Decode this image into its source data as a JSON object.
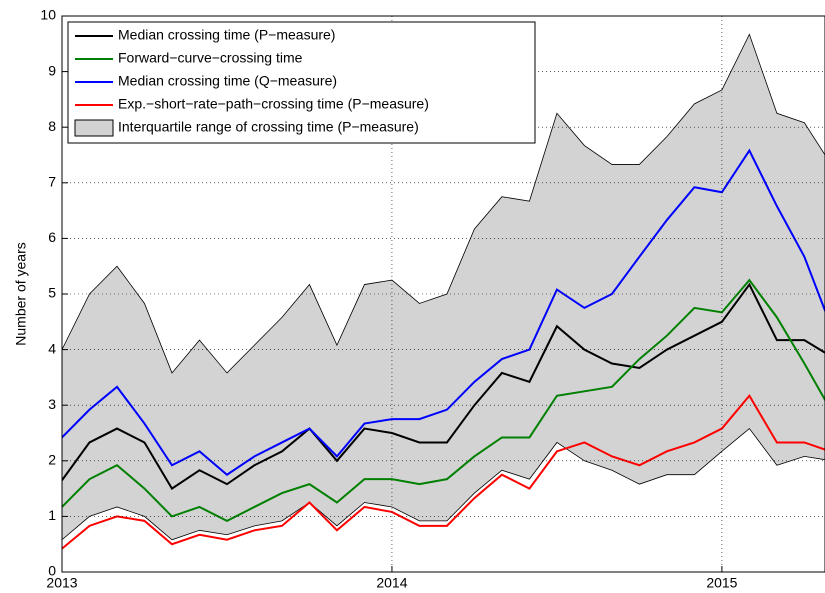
{
  "chart_data": {
    "type": "line",
    "ylabel": "Number of years",
    "x": [
      2013,
      2013.0833,
      2013.1667,
      2013.25,
      2013.3333,
      2013.4167,
      2013.5,
      2013.5833,
      2013.6667,
      2013.75,
      2013.8333,
      2013.9167,
      2014,
      2014.0833,
      2014.1667,
      2014.25,
      2014.3333,
      2014.4167,
      2014.5,
      2014.5833,
      2014.6667,
      2014.75,
      2014.8333,
      2014.9167,
      2015,
      2015.0833,
      2015.1667,
      2015.25,
      2015.3333
    ],
    "series": [
      {
        "name": "Median crossing time (P−measure)",
        "color": "#000000",
        "values": [
          1.65,
          2.33,
          2.58,
          2.33,
          1.5,
          1.83,
          1.58,
          1.92,
          2.17,
          2.58,
          2.0,
          2.58,
          2.5,
          2.33,
          2.33,
          3.0,
          3.58,
          3.42,
          4.42,
          4.0,
          3.75,
          3.67,
          4.0,
          4.25,
          4.5,
          5.17,
          4.17,
          4.17,
          3.87
        ]
      },
      {
        "name": "Forward−curve−crossing time",
        "color": "#008000",
        "values": [
          1.17,
          1.67,
          1.92,
          1.5,
          1.0,
          1.17,
          0.92,
          1.17,
          1.42,
          1.58,
          1.25,
          1.67,
          1.67,
          1.58,
          1.67,
          2.08,
          2.42,
          2.42,
          3.17,
          3.25,
          3.33,
          3.83,
          4.25,
          4.75,
          4.67,
          5.25,
          4.58,
          3.75,
          2.88
        ]
      },
      {
        "name": "Median crossing time (Q−measure)",
        "color": "#0000ff",
        "values": [
          2.42,
          2.92,
          3.33,
          2.67,
          1.92,
          2.17,
          1.75,
          2.08,
          2.33,
          2.58,
          2.08,
          2.67,
          2.75,
          2.75,
          2.92,
          3.42,
          3.83,
          4.0,
          5.08,
          4.75,
          5.0,
          5.67,
          6.33,
          6.92,
          6.83,
          7.58,
          6.58,
          5.67,
          4.38
        ]
      },
      {
        "name": "Exp.−short−rate−path−crossing time (P−measure)",
        "color": "#ff0000",
        "values": [
          0.42,
          0.83,
          1.0,
          0.92,
          0.5,
          0.67,
          0.58,
          0.75,
          0.83,
          1.25,
          0.75,
          1.17,
          1.08,
          0.83,
          0.83,
          1.33,
          1.75,
          1.5,
          2.17,
          2.33,
          2.08,
          1.92,
          2.17,
          2.33,
          2.58,
          3.17,
          2.33,
          2.33,
          2.16
        ]
      }
    ],
    "band": {
      "name": "Interquartile range of crossing time (P−measure)",
      "color": "#d3d3d3",
      "upper": [
        4.0,
        5.0,
        5.5,
        4.83,
        3.58,
        4.17,
        3.58,
        4.08,
        4.58,
        5.17,
        4.08,
        5.17,
        5.25,
        4.83,
        5.0,
        6.17,
        6.75,
        6.67,
        8.25,
        7.67,
        7.33,
        7.33,
        7.83,
        8.42,
        8.67,
        9.67,
        8.25,
        8.08,
        7.31
      ],
      "lower": [
        0.58,
        1.0,
        1.17,
        1.0,
        0.58,
        0.75,
        0.67,
        0.83,
        0.92,
        1.25,
        0.83,
        1.25,
        1.17,
        0.92,
        0.92,
        1.42,
        1.83,
        1.67,
        2.33,
        2.0,
        1.83,
        1.58,
        1.75,
        1.75,
        2.17,
        2.58,
        1.92,
        2.08,
        2.0
      ]
    },
    "xlim": [
      2013,
      2015.3125
    ],
    "xticks": [
      2013,
      2014,
      2015
    ],
    "ylim": [
      0,
      10
    ],
    "yticks": [
      0,
      1,
      2,
      3,
      4,
      5,
      6,
      7,
      8,
      9,
      10
    ],
    "grid": true,
    "legend": "upper-left"
  }
}
